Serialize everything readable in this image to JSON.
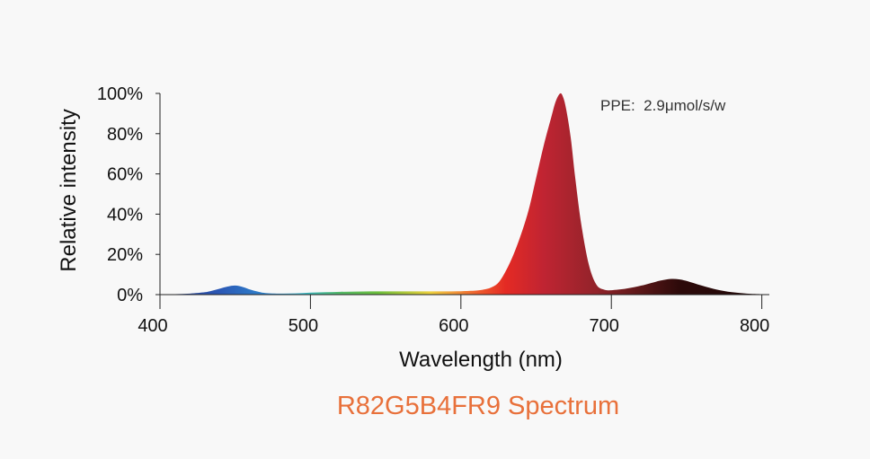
{
  "chart_data": {
    "type": "area",
    "title": "R82G5B4FR9 Spectrum",
    "title_color": "#e8703a",
    "xlabel": "Wavelength (nm)",
    "ylabel": "Relative intensity",
    "annotation": "PPE:  2.9μmol/s/w",
    "xlim": [
      400,
      805
    ],
    "ylim": [
      0,
      100
    ],
    "x_ticks": [
      400,
      500,
      600,
      700,
      800
    ],
    "x_tick_labels": [
      "400",
      "500",
      "600",
      "700",
      "800"
    ],
    "y_ticks": [
      0,
      20,
      40,
      60,
      80,
      100
    ],
    "y_tick_labels": [
      "0%",
      "20%",
      "40%",
      "60%",
      "80%",
      "100%"
    ],
    "grid": false,
    "x": [
      400,
      410,
      420,
      430,
      435,
      440,
      445,
      450,
      455,
      460,
      465,
      470,
      480,
      490,
      500,
      510,
      520,
      530,
      540,
      550,
      560,
      570,
      580,
      590,
      600,
      610,
      615,
      620,
      625,
      630,
      635,
      640,
      645,
      650,
      655,
      660,
      663,
      666,
      668,
      670,
      673,
      676,
      680,
      685,
      690,
      695,
      700,
      710,
      720,
      730,
      735,
      740,
      745,
      750,
      760,
      770,
      780,
      790,
      800,
      805
    ],
    "y": [
      0,
      0.2,
      0.5,
      1.2,
      2,
      3,
      4,
      4.5,
      3.8,
      2.5,
      1.5,
      0.8,
      0.5,
      0.6,
      1,
      1.2,
      1.4,
      1.5,
      1.6,
      1.6,
      1.6,
      1.6,
      1.6,
      1.6,
      1.7,
      2,
      2.5,
      3.5,
      6,
      12,
      20,
      30,
      42,
      58,
      74,
      88,
      96,
      100,
      98,
      92,
      78,
      58,
      35,
      15,
      5,
      2.5,
      2.2,
      3,
      4.5,
      6.5,
      7.3,
      7.8,
      7.6,
      6.8,
      4.5,
      2.5,
      1.2,
      0.5,
      0.2,
      0.1
    ],
    "gradient_stops": [
      {
        "wl": 400,
        "color": "#283c8c"
      },
      {
        "wl": 440,
        "color": "#2b58b5"
      },
      {
        "wl": 475,
        "color": "#2f8ad0"
      },
      {
        "wl": 495,
        "color": "#39b9c9"
      },
      {
        "wl": 520,
        "color": "#55b968"
      },
      {
        "wl": 545,
        "color": "#6cbf3c"
      },
      {
        "wl": 565,
        "color": "#b6c93b"
      },
      {
        "wl": 580,
        "color": "#eed13e"
      },
      {
        "wl": 595,
        "color": "#f29a3a"
      },
      {
        "wl": 612,
        "color": "#ee5a2c"
      },
      {
        "wl": 630,
        "color": "#e42a24"
      },
      {
        "wl": 655,
        "color": "#c02432"
      },
      {
        "wl": 690,
        "color": "#92232a"
      },
      {
        "wl": 720,
        "color": "#5a1718"
      },
      {
        "wl": 745,
        "color": "#2d0a0a"
      },
      {
        "wl": 805,
        "color": "#200808"
      }
    ]
  }
}
